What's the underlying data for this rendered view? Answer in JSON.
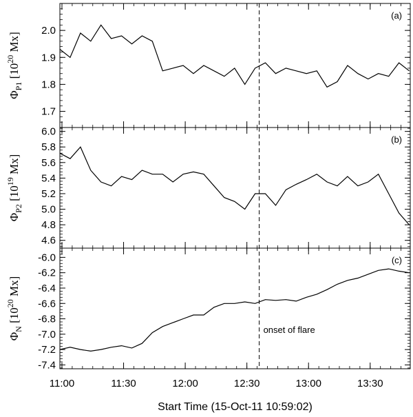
{
  "chart_data": [
    {
      "type": "line",
      "panel_label": "(a)",
      "ylabel": {
        "symbol": "Φ",
        "sub": "P1",
        "unit_pre": "[10",
        "sup": "20",
        "unit_post": " Mx]"
      },
      "ylim": [
        1.64,
        2.1
      ],
      "yticks": [
        "1.7",
        "1.8",
        "1.9",
        "2.0"
      ],
      "x": [
        0,
        5,
        10,
        15,
        20,
        25,
        30,
        35,
        40,
        45,
        50,
        55,
        60,
        65,
        70,
        75,
        80,
        85,
        90,
        95,
        100,
        105,
        110,
        115,
        120,
        125,
        130,
        135,
        140,
        145,
        150,
        155,
        160,
        165,
        170
      ],
      "series": [
        {
          "values": [
            1.93,
            1.9,
            1.99,
            1.96,
            2.02,
            1.97,
            1.98,
            1.95,
            1.98,
            1.96,
            1.85,
            1.86,
            1.87,
            1.84,
            1.87,
            1.85,
            1.83,
            1.86,
            1.8,
            1.86,
            1.88,
            1.84,
            1.86,
            1.85,
            1.84,
            1.85,
            1.79,
            1.81,
            1.87,
            1.84,
            1.82,
            1.84,
            1.83,
            1.88,
            1.85
          ]
        }
      ]
    },
    {
      "type": "line",
      "panel_label": "(b)",
      "ylabel": {
        "symbol": "Φ",
        "sub": "P2",
        "unit_pre": "[10",
        "sup": "19",
        "unit_post": " Mx]"
      },
      "ylim": [
        4.5,
        6.05
      ],
      "yticks": [
        "4.6",
        "4.8",
        "5.0",
        "5.2",
        "5.4",
        "5.6",
        "5.8",
        "6.0"
      ],
      "x": [
        0,
        5,
        10,
        15,
        20,
        25,
        30,
        35,
        40,
        45,
        50,
        55,
        60,
        65,
        70,
        75,
        80,
        85,
        90,
        95,
        100,
        105,
        110,
        115,
        120,
        125,
        130,
        135,
        140,
        145,
        150,
        155,
        160,
        165,
        170
      ],
      "series": [
        {
          "values": [
            5.72,
            5.65,
            5.8,
            5.5,
            5.35,
            5.3,
            5.42,
            5.38,
            5.5,
            5.45,
            5.45,
            5.35,
            5.45,
            5.48,
            5.45,
            5.3,
            5.15,
            5.1,
            5.0,
            5.2,
            5.2,
            5.05,
            5.25,
            5.32,
            5.38,
            5.45,
            5.35,
            5.3,
            5.42,
            5.3,
            5.35,
            5.45,
            5.2,
            4.95,
            4.8
          ]
        }
      ]
    },
    {
      "type": "line",
      "panel_label": "(c)",
      "ylabel": {
        "symbol": "Φ",
        "sub": "N",
        "unit_pre": "[10",
        "sup": "20",
        "unit_post": " Mx]"
      },
      "ylim": [
        -7.45,
        -5.88
      ],
      "yticks": [
        "-7.4",
        "-7.2",
        "-7.0",
        "-6.8",
        "-6.6",
        "-6.4",
        "-6.2",
        "-6.0"
      ],
      "x": [
        0,
        5,
        10,
        15,
        20,
        25,
        30,
        35,
        40,
        45,
        50,
        55,
        60,
        65,
        70,
        75,
        80,
        85,
        90,
        95,
        100,
        105,
        110,
        115,
        120,
        125,
        130,
        135,
        140,
        145,
        150,
        155,
        160,
        165,
        170
      ],
      "series": [
        {
          "values": [
            -7.2,
            -7.17,
            -7.2,
            -7.22,
            -7.2,
            -7.17,
            -7.15,
            -7.18,
            -7.12,
            -6.98,
            -6.9,
            -6.85,
            -6.8,
            -6.75,
            -6.75,
            -6.65,
            -6.6,
            -6.6,
            -6.58,
            -6.6,
            -6.55,
            -6.56,
            -6.55,
            -6.57,
            -6.52,
            -6.48,
            -6.42,
            -6.35,
            -6.3,
            -6.27,
            -6.22,
            -6.17,
            -6.15,
            -6.18,
            -6.2
          ]
        }
      ]
    }
  ],
  "x_axis": {
    "xlim": [
      0,
      170.5
    ],
    "ticks": [
      {
        "value": 1,
        "label": "11:00"
      },
      {
        "value": 31,
        "label": "11:30"
      },
      {
        "value": 61,
        "label": "12:00"
      },
      {
        "value": 91,
        "label": "12:30"
      },
      {
        "value": 121,
        "label": "13:00"
      },
      {
        "value": 151,
        "label": "13:30"
      }
    ],
    "label": "Start Time (15-Oct-11 10:59:02)"
  },
  "flare_onset": {
    "x": 97,
    "label": "onset of flare"
  }
}
